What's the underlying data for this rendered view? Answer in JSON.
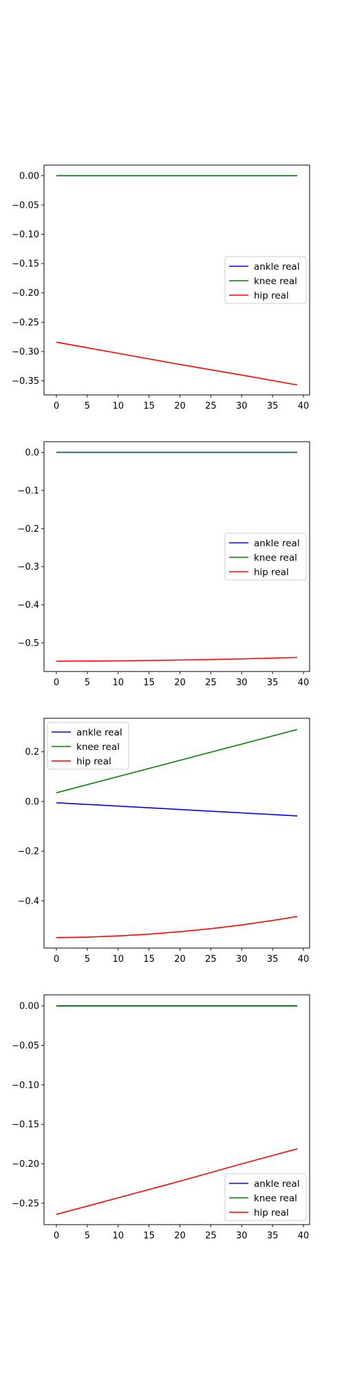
{
  "chart_data": [
    {
      "type": "line",
      "x": [
        0,
        39
      ],
      "xticks": [
        0,
        5,
        10,
        15,
        20,
        25,
        30,
        35,
        40
      ],
      "yticks": [
        0.0,
        -0.05,
        -0.1,
        -0.15,
        -0.2,
        -0.25,
        -0.3,
        -0.35
      ],
      "ytick_labels": [
        "0.00",
        "−0.05",
        "−0.10",
        "−0.15",
        "−0.20",
        "−0.25",
        "−0.30",
        "−0.35"
      ],
      "ylim": [
        -0.374,
        0.018
      ],
      "xlim": [
        -2,
        41
      ],
      "legend_position": "center-right",
      "series": [
        {
          "name": "ankle real",
          "color": "#0000ff",
          "x": [
            0,
            39
          ],
          "y": [
            0.0,
            0.0
          ]
        },
        {
          "name": "knee real",
          "color": "#008000",
          "x": [
            0,
            39
          ],
          "y": [
            0.0,
            0.0
          ]
        },
        {
          "name": "hip real",
          "color": "#ff0000",
          "x": [
            0,
            10,
            20,
            30,
            39
          ],
          "y": [
            -0.284,
            -0.303,
            -0.322,
            -0.34,
            -0.357
          ]
        }
      ]
    },
    {
      "type": "line",
      "x": [
        0,
        39
      ],
      "xticks": [
        0,
        5,
        10,
        15,
        20,
        25,
        30,
        35,
        40
      ],
      "yticks": [
        0.0,
        -0.1,
        -0.2,
        -0.3,
        -0.4,
        -0.5
      ],
      "ytick_labels": [
        "0.0",
        "−0.1",
        "−0.2",
        "−0.3",
        "−0.4",
        "−0.5"
      ],
      "ylim": [
        -0.575,
        0.028
      ],
      "xlim": [
        -2,
        41
      ],
      "legend_position": "center-right",
      "series": [
        {
          "name": "ankle real",
          "color": "#0000ff",
          "x": [
            0,
            39
          ],
          "y": [
            0.0,
            0.0
          ]
        },
        {
          "name": "knee real",
          "color": "#008000",
          "x": [
            0,
            39
          ],
          "y": [
            0.0,
            0.0
          ]
        },
        {
          "name": "hip real",
          "color": "#ff0000",
          "x": [
            0,
            10,
            20,
            30,
            39
          ],
          "y": [
            -0.548,
            -0.547,
            -0.545,
            -0.542,
            -0.538
          ]
        }
      ]
    },
    {
      "type": "line",
      "x": [
        0,
        39
      ],
      "xticks": [
        0,
        5,
        10,
        15,
        20,
        25,
        30,
        35,
        40
      ],
      "yticks": [
        0.2,
        0.0,
        -0.2,
        -0.4
      ],
      "ytick_labels": [
        "0.2",
        "0.0",
        "−0.2",
        "−0.4"
      ],
      "ylim": [
        -0.59,
        0.335
      ],
      "xlim": [
        -2,
        41
      ],
      "legend_position": "upper-left",
      "series": [
        {
          "name": "ankle real",
          "color": "#0000ff",
          "x": [
            0,
            39
          ],
          "y": [
            -0.005,
            -0.058
          ]
        },
        {
          "name": "knee real",
          "color": "#008000",
          "x": [
            0,
            39
          ],
          "y": [
            0.035,
            0.29
          ]
        },
        {
          "name": "hip real",
          "color": "#ff0000",
          "x": [
            0,
            5,
            10,
            15,
            20,
            25,
            30,
            35,
            39
          ],
          "y": [
            -0.548,
            -0.546,
            -0.541,
            -0.534,
            -0.524,
            -0.512,
            -0.497,
            -0.479,
            -0.463
          ]
        }
      ]
    },
    {
      "type": "line",
      "x": [
        0,
        39
      ],
      "xticks": [
        0,
        5,
        10,
        15,
        20,
        25,
        30,
        35,
        40
      ],
      "yticks": [
        0.0,
        -0.05,
        -0.1,
        -0.15,
        -0.2,
        -0.25
      ],
      "ytick_labels": [
        "0.00",
        "−0.05",
        "−0.10",
        "−0.15",
        "−0.20",
        "−0.25"
      ],
      "ylim": [
        -0.277,
        0.014
      ],
      "xlim": [
        -2,
        41
      ],
      "legend_position": "lower-right",
      "series": [
        {
          "name": "ankle real",
          "color": "#0000ff",
          "x": [
            0,
            39
          ],
          "y": [
            0.0,
            0.0
          ]
        },
        {
          "name": "knee real",
          "color": "#008000",
          "x": [
            0,
            39
          ],
          "y": [
            0.0,
            0.0
          ]
        },
        {
          "name": "hip real",
          "color": "#ff0000",
          "x": [
            0,
            10,
            20,
            30,
            39
          ],
          "y": [
            -0.264,
            -0.243,
            -0.222,
            -0.2,
            -0.181
          ]
        }
      ]
    }
  ]
}
